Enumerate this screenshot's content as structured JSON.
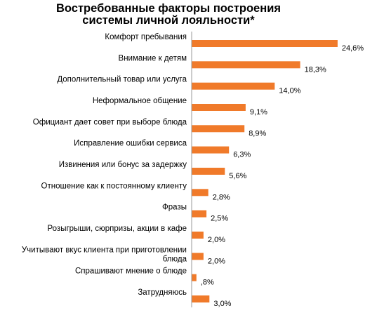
{
  "chart_data": {
    "type": "bar",
    "orientation": "horizontal",
    "title_lines": [
      "Востребованные  факторы построения",
      "системы личной лояльности*"
    ],
    "categories": [
      [
        "Комфорт пребывания"
      ],
      [
        "Внимание к детям"
      ],
      [
        "Дополнительный товар или услуга"
      ],
      [
        "Неформальное общение"
      ],
      [
        "Официант дает совет при выборе блюда"
      ],
      [
        "Исправление ошибки сервиса"
      ],
      [
        "Извинения или бонус за задержку"
      ],
      [
        "Отношение как к постоянному клиенту"
      ],
      [
        "Фразы"
      ],
      [
        "Розыгрыши, сюрпризы, акции в кафе"
      ],
      [
        "Учитывают вкус клиента при приготовлении",
        "блюда"
      ],
      [
        "Спрашивают мнение о блюде"
      ],
      [
        "Затрудняюсь"
      ]
    ],
    "values": [
      24.6,
      18.3,
      14.0,
      9.1,
      8.9,
      6.3,
      5.6,
      2.8,
      2.5,
      2.0,
      2.0,
      0.8,
      3.0
    ],
    "data_labels": [
      "24,6%",
      "18,3%",
      "14,0%",
      "9,1%",
      "8,9%",
      "6,3%",
      "5,6%",
      "2,8%",
      "2,5%",
      "2,0%",
      "2,0%",
      ",8%",
      "3,0%"
    ],
    "bar_color": "#f07a2a",
    "axis_color": "#999999",
    "grid": false,
    "legend": false
  }
}
